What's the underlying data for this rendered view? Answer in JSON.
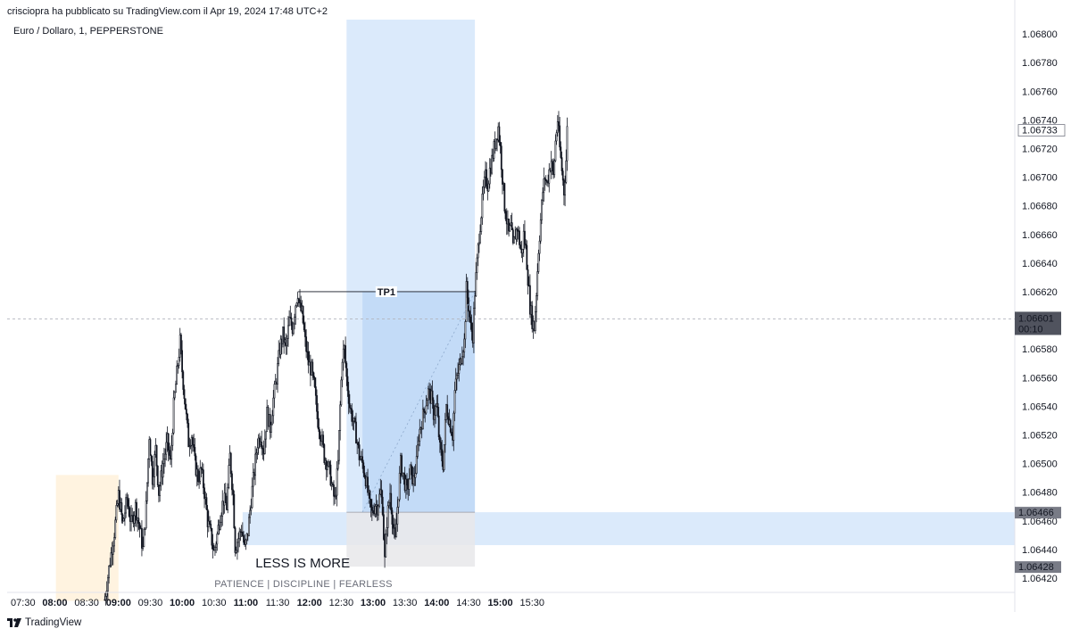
{
  "header": {
    "publish_line": "crisciopra ha pubblicato su TradingView.com il Apr 19, 2024 17:48 UTC+2",
    "symbol_line": "Euro / Dollaro, 1, PEPPERSTONE"
  },
  "footer": {
    "brand": "TradingView"
  },
  "colors": {
    "candle": "#131722",
    "session_box": "#fff3e0",
    "position_zone": "#dbeafb",
    "target_zone": "#c3dbf7",
    "stop_zone": "#e8e8ea",
    "crosshair": "#b2b5be",
    "label_dark": "#50535e",
    "label_gray": "#787b86"
  },
  "chart_data": {
    "type": "candlestick",
    "instrument": "Euro / Dollaro",
    "timeframe": "1",
    "exchange": "PEPPERSTONE",
    "y_axis": {
      "min": 1.0641,
      "max": 1.0681,
      "ticks": [
        "1.06800",
        "1.06780",
        "1.06760",
        "1.06740",
        "1.06720",
        "1.06700",
        "1.06680",
        "1.06660",
        "1.06640",
        "1.06620",
        "1.06580",
        "1.06560",
        "1.06540",
        "1.06520",
        "1.06500",
        "1.06480",
        "1.06460",
        "1.06440",
        "1.06420"
      ],
      "tick_values": [
        1.068,
        1.0678,
        1.0676,
        1.0674,
        1.0672,
        1.067,
        1.0668,
        1.0666,
        1.0664,
        1.0662,
        1.0658,
        1.0656,
        1.0654,
        1.0652,
        1.065,
        1.0648,
        1.0646,
        1.0644,
        1.0642
      ]
    },
    "x_axis": {
      "start_minute": 435,
      "end_minute": 1385,
      "ticks": [
        {
          "label": "07:30",
          "minute": 450,
          "bold": false
        },
        {
          "label": "08:00",
          "minute": 480,
          "bold": true
        },
        {
          "label": "08:30",
          "minute": 510,
          "bold": false
        },
        {
          "label": "09:00",
          "minute": 540,
          "bold": true
        },
        {
          "label": "09:30",
          "minute": 570,
          "bold": false
        },
        {
          "label": "10:00",
          "minute": 600,
          "bold": true
        },
        {
          "label": "10:30",
          "minute": 630,
          "bold": false
        },
        {
          "label": "11:00",
          "minute": 660,
          "bold": true
        },
        {
          "label": "11:30",
          "minute": 690,
          "bold": false
        },
        {
          "label": "12:00",
          "minute": 720,
          "bold": true
        },
        {
          "label": "12:30",
          "minute": 750,
          "bold": false
        },
        {
          "label": "13:00",
          "minute": 780,
          "bold": true
        },
        {
          "label": "13:30",
          "minute": 810,
          "bold": false
        },
        {
          "label": "14:00",
          "minute": 840,
          "bold": true
        },
        {
          "label": "14:30",
          "minute": 870,
          "bold": false
        },
        {
          "label": "15:00",
          "minute": 900,
          "bold": true
        },
        {
          "label": "15:30",
          "minute": 930,
          "bold": false
        }
      ]
    },
    "price_path": [
      [
        527,
        1.06405
      ],
      [
        532,
        1.06432
      ],
      [
        536,
        1.06452
      ],
      [
        540,
        1.06478
      ],
      [
        544,
        1.06458
      ],
      [
        548,
        1.06475
      ],
      [
        552,
        1.06458
      ],
      [
        556,
        1.0647
      ],
      [
        560,
        1.06455
      ],
      [
        563,
        1.0644
      ],
      [
        566,
        1.0647
      ],
      [
        569,
        1.0652
      ],
      [
        572,
        1.0649
      ],
      [
        575,
        1.0651
      ],
      [
        578,
        1.0648
      ],
      [
        582,
        1.065
      ],
      [
        586,
        1.06515
      ],
      [
        589,
        1.065
      ],
      [
        592,
        1.0654
      ],
      [
        596,
        1.0657
      ],
      [
        598,
        1.06585
      ],
      [
        600,
        1.06565
      ],
      [
        603,
        1.0654
      ],
      [
        606,
        1.06515
      ],
      [
        609,
        1.0652
      ],
      [
        612,
        1.065
      ],
      [
        615,
        1.0649
      ],
      [
        618,
        1.06495
      ],
      [
        621,
        1.0648
      ],
      [
        624,
        1.0646
      ],
      [
        627,
        1.0645
      ],
      [
        630,
        1.06438
      ],
      [
        633,
        1.0645
      ],
      [
        636,
        1.06465
      ],
      [
        639,
        1.06475
      ],
      [
        642,
        1.0647
      ],
      [
        645,
        1.06505
      ],
      [
        648,
        1.06478
      ],
      [
        650,
        1.06442
      ],
      [
        653,
        1.06448
      ],
      [
        656,
        1.06455
      ],
      [
        659,
        1.0644
      ],
      [
        662,
        1.06452
      ],
      [
        665,
        1.06475
      ],
      [
        668,
        1.06495
      ],
      [
        671,
        1.06515
      ],
      [
        674,
        1.0652
      ],
      [
        677,
        1.0651
      ],
      [
        680,
        1.06535
      ],
      [
        683,
        1.06525
      ],
      [
        686,
        1.06545
      ],
      [
        689,
        1.0656
      ],
      [
        692,
        1.0658
      ],
      [
        695,
        1.0659
      ],
      [
        698,
        1.0658
      ],
      [
        701,
        1.066
      ],
      [
        704,
        1.06595
      ],
      [
        707,
        1.06612
      ],
      [
        709,
        1.0662
      ],
      [
        711,
        1.06608
      ],
      [
        713,
        1.06605
      ],
      [
        716,
        1.06585
      ],
      [
        719,
        1.0657
      ],
      [
        722,
        1.06565
      ],
      [
        725,
        1.0655
      ],
      [
        728,
        1.0653
      ],
      [
        731,
        1.0652
      ],
      [
        734,
        1.06505
      ],
      [
        737,
        1.065
      ],
      [
        740,
        1.0649
      ],
      [
        742,
        1.0648
      ],
      [
        744,
        1.06474
      ],
      [
        747,
        1.065
      ],
      [
        749,
        1.0654
      ],
      [
        751,
        1.06575
      ],
      [
        753,
        1.0658
      ],
      [
        755,
        1.0656
      ],
      [
        758,
        1.0654
      ],
      [
        761,
        1.0653
      ],
      [
        764,
        1.0652
      ],
      [
        767,
        1.06505
      ],
      [
        770,
        1.065
      ],
      [
        773,
        1.0649
      ],
      [
        775,
        1.0648
      ],
      [
        777,
        1.0647
      ],
      [
        779,
        1.06465
      ],
      [
        782,
        1.06472
      ],
      [
        784,
        1.0647
      ],
      [
        787,
        1.0648
      ],
      [
        789,
        1.0647
      ],
      [
        790,
        1.0645
      ],
      [
        791,
        1.06432
      ],
      [
        793,
        1.0646
      ],
      [
        796,
        1.0648
      ],
      [
        799,
        1.06455
      ],
      [
        801,
        1.06445
      ],
      [
        803,
        1.0647
      ],
      [
        806,
        1.065
      ],
      [
        809,
        1.0649
      ],
      [
        812,
        1.0648
      ],
      [
        815,
        1.06495
      ],
      [
        818,
        1.06488
      ],
      [
        821,
        1.065
      ],
      [
        823,
        1.0652
      ],
      [
        826,
        1.0653
      ],
      [
        829,
        1.0654
      ],
      [
        832,
        1.0655
      ],
      [
        835,
        1.06545
      ],
      [
        837,
        1.06535
      ],
      [
        840,
        1.0654
      ],
      [
        843,
        1.0651
      ],
      [
        846,
        1.065
      ],
      [
        849,
        1.0654
      ],
      [
        852,
        1.0653
      ],
      [
        855,
        1.0652
      ],
      [
        857,
        1.0655
      ],
      [
        859,
        1.0656
      ],
      [
        862,
        1.0657
      ],
      [
        864,
        1.0658
      ],
      [
        866,
        1.06585
      ],
      [
        868,
        1.06622
      ],
      [
        870,
        1.0661
      ],
      [
        872,
        1.06595
      ],
      [
        874,
        1.0659
      ],
      [
        876,
        1.0662
      ],
      [
        878,
        1.0664
      ],
      [
        880,
        1.0666
      ],
      [
        882,
        1.06675
      ],
      [
        884,
        1.0669
      ],
      [
        886,
        1.067
      ],
      [
        888,
        1.06695
      ],
      [
        890,
        1.06705
      ],
      [
        892,
        1.06712
      ],
      [
        894,
        1.0672
      ],
      [
        896,
        1.06728
      ],
      [
        898,
        1.06735
      ],
      [
        900,
        1.0672
      ],
      [
        902,
        1.067
      ],
      [
        904,
        1.0668
      ],
      [
        906,
        1.0667
      ],
      [
        908,
        1.0666
      ],
      [
        910,
        1.06665
      ],
      [
        912,
        1.0665
      ],
      [
        914,
        1.0666
      ],
      [
        916,
        1.06665
      ],
      [
        918,
        1.06655
      ],
      [
        920,
        1.06645
      ],
      [
        922,
        1.0666
      ],
      [
        924,
        1.0665
      ],
      [
        926,
        1.0663
      ],
      [
        928,
        1.0661
      ],
      [
        930,
        1.066
      ],
      [
        932,
        1.06595
      ],
      [
        934,
        1.0662
      ],
      [
        936,
        1.0665
      ],
      [
        938,
        1.0667
      ],
      [
        940,
        1.0669
      ],
      [
        942,
        1.067
      ],
      [
        944,
        1.06695
      ],
      [
        946,
        1.06705
      ],
      [
        948,
        1.06712
      ],
      [
        950,
        1.067
      ],
      [
        952,
        1.06725
      ],
      [
        954,
        1.0674
      ],
      [
        956,
        1.0672
      ],
      [
        958,
        1.06705
      ],
      [
        960,
        1.0669
      ],
      [
        962,
        1.06712
      ],
      [
        963,
        1.06733
      ]
    ],
    "annotations": {
      "tp_label": "TP1",
      "tp_level": 1.0662,
      "tp_start_minute": 709,
      "tp_end_minute": 876,
      "position": {
        "start_minute": 755,
        "end_minute": 876,
        "entry_start_minute": 770,
        "entry": 1.06466,
        "stop": 1.06428,
        "target": 1.0662,
        "top_price": 1.0681
      },
      "zone": {
        "start_minute": 657,
        "end_minute": 1385,
        "top": 1.06466,
        "bottom": 1.06443
      },
      "session_box": {
        "start_minute": 481,
        "end_minute": 540,
        "top": 1.06492,
        "bottom": 1.06404
      },
      "text_title": "LESS IS MORE",
      "text_sub": "PATIENCE  |  DISCIPLINE  |  FEARLESS",
      "text_anchor_minute": 659,
      "text_anchor_price": 1.06435
    },
    "price_labels": [
      {
        "value": "1.06733",
        "price": 1.06733,
        "style": "last"
      },
      {
        "value": "1.06601",
        "price": 1.06601,
        "style": "crosshair",
        "extra": "00:10"
      },
      {
        "value": "1.06466",
        "price": 1.06466,
        "style": "gray"
      },
      {
        "value": "1.06428",
        "price": 1.06428,
        "style": "gray"
      }
    ],
    "crosshair_price": 1.06601
  }
}
